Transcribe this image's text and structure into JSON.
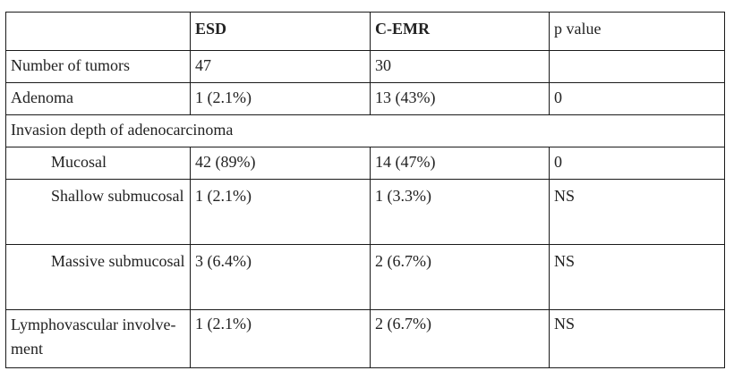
{
  "table": {
    "headers": [
      "",
      "ESD",
      "C-EMR",
      "p value"
    ],
    "rows": [
      {
        "label": "Number of tumors",
        "esd": "47",
        "cemr": "30",
        "p": ""
      },
      {
        "label": "Adenoma",
        "esd": "1 (2.1%)",
        "cemr": "13 (43%)",
        "p": "0"
      },
      {
        "label": "Invasion depth of adenocarcinoma"
      },
      {
        "label": "Mucosal",
        "esd": "42 (89%)",
        "cemr": "14 (47%)",
        "p": "0"
      },
      {
        "label": "Shallow submucosal",
        "esd": "1 (2.1%)",
        "cemr": "1 (3.3%)",
        "p": "NS"
      },
      {
        "label": "Massive submucosal",
        "esd": "3 (6.4%)",
        "cemr": "2 (6.7%)",
        "p": "NS"
      },
      {
        "label": "Lymphovascular involve-ment",
        "esd": "1 (2.1%)",
        "cemr": "2 (6.7%)",
        "p": "NS"
      }
    ]
  }
}
